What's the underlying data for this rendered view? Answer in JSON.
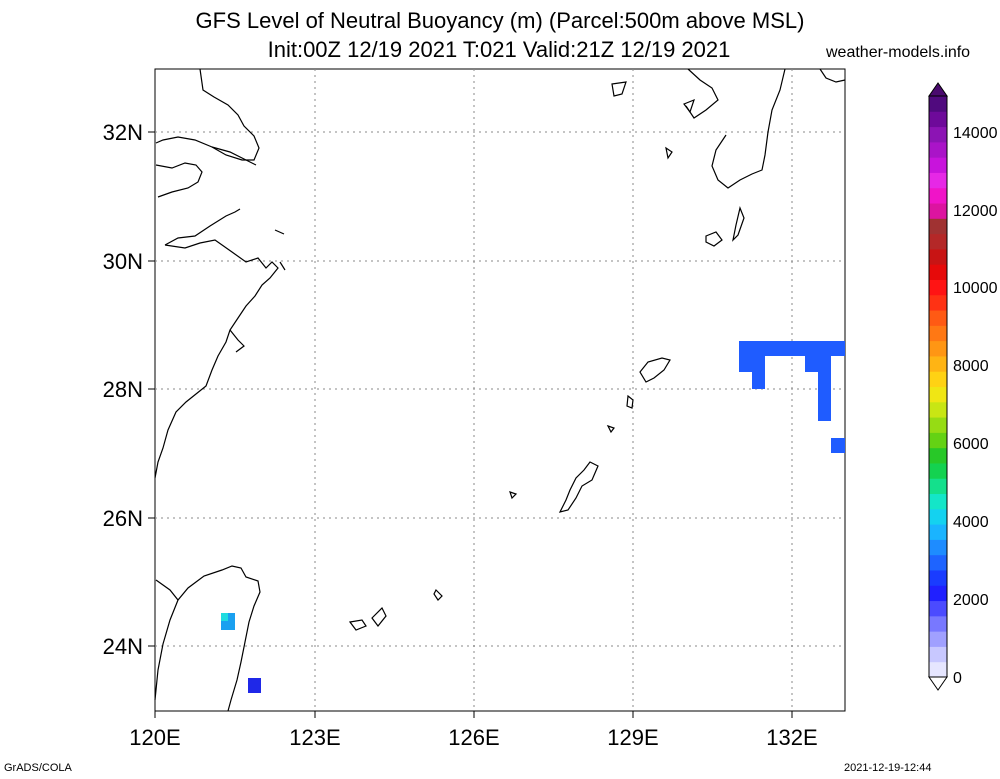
{
  "header": {
    "title_line1": "GFS Level of Neutral Buoyancy (m) (Parcel:500m above MSL)",
    "title_line2": "Init:00Z 12/19 2021 T:021 Valid:21Z 12/19 2021",
    "site": "weather-models.info"
  },
  "footer": {
    "left": "GrADS/COLA",
    "right": "2021-12-19-12:44"
  },
  "map": {
    "lon_range": [
      120,
      133
    ],
    "lat_range": [
      23,
      33
    ],
    "lat_ticks": [
      "32N",
      "30N",
      "28N",
      "26N",
      "24N"
    ],
    "lon_ticks": [
      "120E",
      "123E",
      "126E",
      "129E",
      "132E"
    ],
    "gridlines": true
  },
  "colorbar": {
    "labels": [
      "14000",
      "12000",
      "10000",
      "8000",
      "6000",
      "4000",
      "2000",
      "0"
    ],
    "range": [
      0,
      15000
    ]
  },
  "colors": {
    "field_blue": "#1f5cff",
    "field_dark_blue": "#1f28e8",
    "field_cyan": "#13c8e8"
  }
}
